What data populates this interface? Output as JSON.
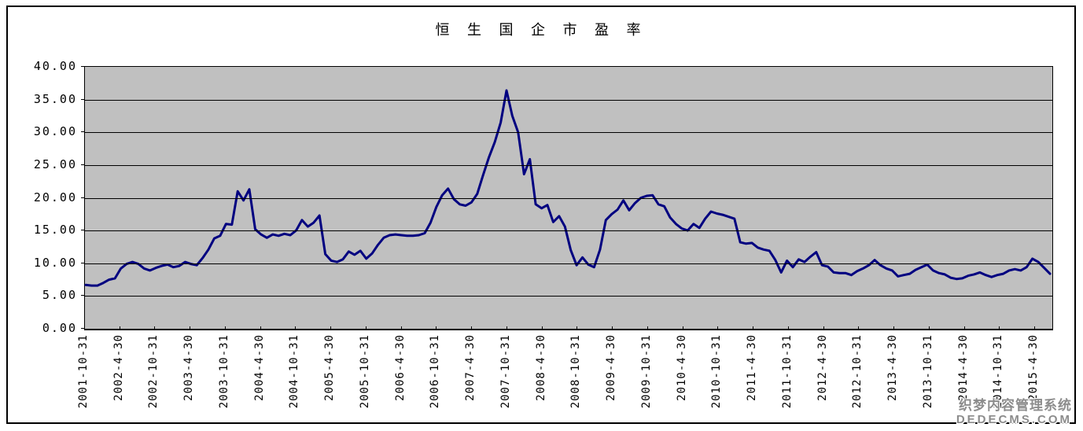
{
  "title": "恒 生 国 企 市 盈 率",
  "watermark": {
    "line1": "织梦内容管理系统",
    "line2": "DEDECMS.COM"
  },
  "colors": {
    "line": "#000080",
    "plot_background": "#C0C0C0",
    "grid": "#000000",
    "page_background": "#FFFFFF",
    "watermark": "#8C8C8C"
  },
  "chart_data": {
    "type": "line",
    "title": "恒生国企市盈率",
    "xlabel": "",
    "ylabel": "",
    "ylim": [
      0,
      40
    ],
    "y_step": 5,
    "grid": "horizontal",
    "legend_position": "none",
    "plot_background": "#C0C0C0",
    "line_color": "#000080",
    "y_tick_labels": [
      "40.00",
      "35.00",
      "30.00",
      "25.00",
      "20.00",
      "15.00",
      "10.00",
      "5.00",
      "0.00"
    ],
    "x_tick_labels": [
      "2001-10-31",
      "2002-4-30",
      "2002-10-31",
      "2003-4-30",
      "2003-10-31",
      "2004-4-30",
      "2004-10-31",
      "2005-4-30",
      "2005-10-31",
      "2006-4-30",
      "2006-10-31",
      "2007-4-30",
      "2007-10-31",
      "2008-4-30",
      "2008-10-31",
      "2009-4-30",
      "2009-10-31",
      "2010-4-30",
      "2010-10-31",
      "2011-4-30",
      "2011-10-31",
      "2012-4-30",
      "2012-10-31",
      "2013-4-30",
      "2013-10-31",
      "2014-4-30",
      "2014-10-31",
      "2015-4-30"
    ],
    "series": [
      {
        "name": "恒生国企市盈率",
        "x_start": "2001-10",
        "x_interval": "monthly",
        "values": [
          6.7,
          6.6,
          6.6,
          7.0,
          7.5,
          7.7,
          9.2,
          9.9,
          10.2,
          9.9,
          9.2,
          8.9,
          9.3,
          9.6,
          9.8,
          9.4,
          9.6,
          10.2,
          9.9,
          9.7,
          10.8,
          12.1,
          13.8,
          14.2,
          16.0,
          15.9,
          21.0,
          19.6,
          21.3,
          15.2,
          14.4,
          13.9,
          14.4,
          14.2,
          14.5,
          14.3,
          15.0,
          16.6,
          15.6,
          16.2,
          17.3,
          11.4,
          10.4,
          10.2,
          10.6,
          11.8,
          11.3,
          11.9,
          10.7,
          11.5,
          12.8,
          13.9,
          14.3,
          14.4,
          14.3,
          14.2,
          14.2,
          14.3,
          14.6,
          16.2,
          18.6,
          20.4,
          21.4,
          19.8,
          19.0,
          18.8,
          19.3,
          20.6,
          23.5,
          26.2,
          28.5,
          31.5,
          36.4,
          32.5,
          30.0,
          23.6,
          25.9,
          19.0,
          18.4,
          18.9,
          16.3,
          17.2,
          15.6,
          12.0,
          9.7,
          10.9,
          9.8,
          9.4,
          12.1,
          16.6,
          17.5,
          18.2,
          19.6,
          18.1,
          19.2,
          20.0,
          20.3,
          20.4,
          19.0,
          18.7,
          17.0,
          16.0,
          15.3,
          15.0,
          16.0,
          15.4,
          16.8,
          17.9,
          17.6,
          17.4,
          17.1,
          16.8,
          13.2,
          13.0,
          13.1,
          12.4,
          12.1,
          11.9,
          10.5,
          8.6,
          10.4,
          9.4,
          10.6,
          10.2,
          11.0,
          11.7,
          9.7,
          9.5,
          8.6,
          8.5,
          8.5,
          8.2,
          8.8,
          9.2,
          9.7,
          10.5,
          9.7,
          9.2,
          8.9,
          8.0,
          8.2,
          8.4,
          9.0,
          9.4,
          9.8,
          8.9,
          8.5,
          8.3,
          7.8,
          7.6,
          7.7,
          8.1,
          8.3,
          8.6,
          8.2,
          7.9,
          8.2,
          8.4,
          8.9,
          9.1,
          8.9,
          9.4,
          10.7,
          10.2,
          9.3,
          8.4
        ]
      }
    ]
  }
}
